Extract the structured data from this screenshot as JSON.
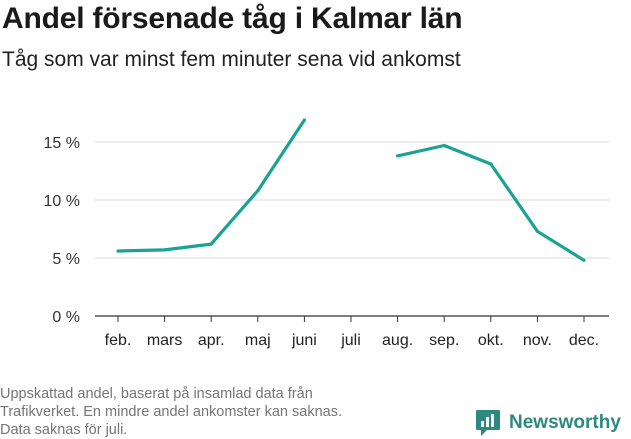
{
  "title": "Andel försenade tåg i Kalmar län",
  "subtitle": "Tåg som var minst fem minuter sena vid ankomst",
  "note_lines": [
    "Uppskattad andel, baserat på insamlad data från",
    "Trafikverket. En mindre andel ankomster kan saknas.",
    "Data saknas för juli."
  ],
  "brand": {
    "name": "Newsworthy",
    "icon": "bar-chart-speech-bubble-icon"
  },
  "colors": {
    "line": "#1aa394",
    "grid": "#d9d9d9",
    "axis": "#333333",
    "brand": "#2d8a80"
  },
  "chart_data": {
    "type": "line",
    "title": "Andel försenade tåg i Kalmar län",
    "subtitle": "Tåg som var minst fem minuter sena vid ankomst",
    "categories": [
      "feb.",
      "mars",
      "apr.",
      "maj",
      "juni",
      "juli",
      "aug.",
      "sep.",
      "okt.",
      "nov.",
      "dec."
    ],
    "series": [
      {
        "values": [
          5.6,
          5.7,
          6.2,
          10.8,
          16.9,
          null,
          13.8,
          14.7,
          13.1,
          7.3,
          4.8
        ]
      }
    ],
    "y_ticks": [
      {
        "value": 0,
        "label": "0 %"
      },
      {
        "value": 5,
        "label": "5 %"
      },
      {
        "value": 10,
        "label": "10 %"
      },
      {
        "value": 15,
        "label": "15 %"
      }
    ],
    "ylim": [
      0,
      18.5
    ],
    "grid": true,
    "legend": false
  }
}
